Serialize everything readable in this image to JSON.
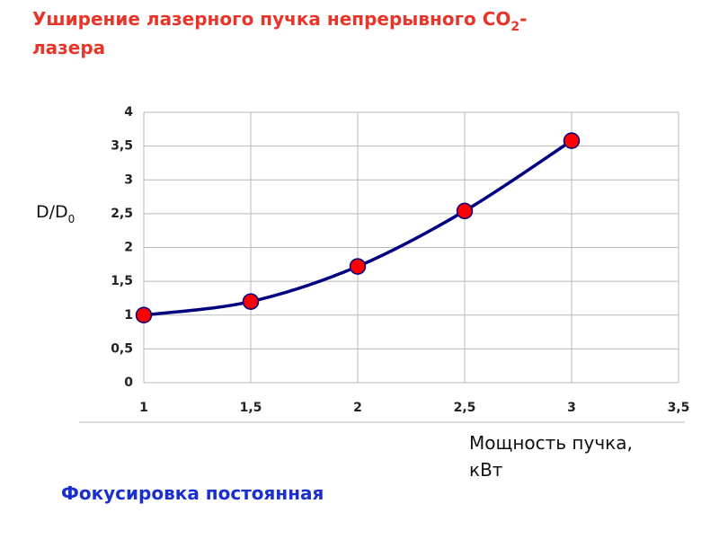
{
  "chart_data": {
    "type": "line",
    "title": {
      "text": "Уширение лазерного пучка непрерывного  CO",
      "subscript": "2",
      "line1_end": "-",
      "line2": "лазера"
    },
    "ylabel": {
      "text": "D/D",
      "subscript": "0"
    },
    "xlabel": [
      "Мощность пучка,",
      "кВт"
    ],
    "note": "Фокусировка постоянная",
    "x": [
      1,
      1.5,
      2,
      2.5,
      3
    ],
    "series": [
      {
        "color": "#000080",
        "marker_color": "#ff0000",
        "values": [
          1.0,
          1.2,
          1.72,
          2.54,
          3.58
        ]
      }
    ],
    "xlim": [
      1,
      3.5
    ],
    "xticks": [
      1,
      {
        "value": 1.5,
        "label": "1,5"
      },
      2,
      {
        "value": 2.5,
        "label": "2,5"
      },
      3,
      {
        "value": 3.5,
        "label": "3,5"
      }
    ],
    "ylim": [
      0,
      4
    ],
    "yticks": [
      0,
      {
        "value": 0.5,
        "label": "0,5"
      },
      1,
      {
        "value": 1.5,
        "label": "1,5"
      },
      2,
      {
        "value": 2.5,
        "label": "2,5"
      },
      3,
      {
        "value": 3.5,
        "label": "3,5"
      },
      4
    ],
    "grid": true
  }
}
